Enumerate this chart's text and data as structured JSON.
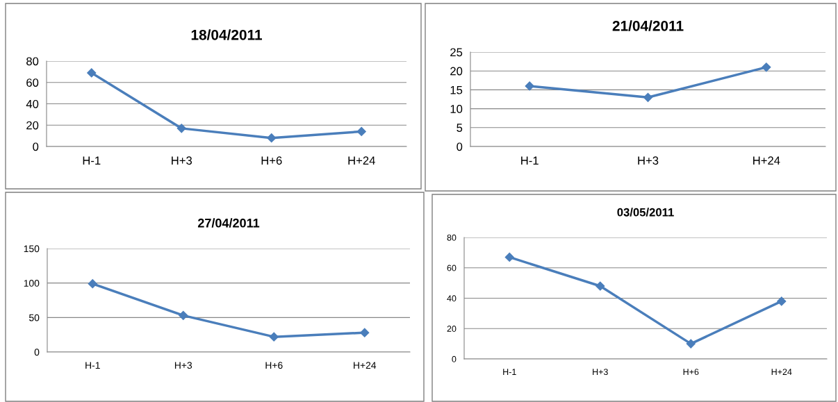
{
  "chart_data": [
    {
      "type": "line",
      "title": "18/04/2011",
      "categories": [
        "H-1",
        "H+3",
        "H+6",
        "H+24"
      ],
      "series": [
        {
          "color": "#4a7ebb",
          "values": [
            69,
            17,
            8,
            14
          ]
        }
      ],
      "ylim": [
        0,
        80
      ],
      "yticks": [
        0,
        20,
        40,
        60,
        80
      ],
      "grid": "y",
      "marker": "diamond",
      "line_style": "solid",
      "legend": false
    },
    {
      "type": "line",
      "title": "21/04/2011",
      "categories": [
        "H-1",
        "H+3",
        "H+24"
      ],
      "series": [
        {
          "color": "#4a7ebb",
          "values": [
            16,
            13,
            21
          ]
        }
      ],
      "ylim": [
        0,
        25
      ],
      "yticks": [
        0,
        5,
        10,
        15,
        20,
        25
      ],
      "grid": "y",
      "marker": "diamond",
      "line_style": "solid",
      "legend": false
    },
    {
      "type": "line",
      "title": "27/04/2011",
      "categories": [
        "H-1",
        "H+3",
        "H+6",
        "H+24"
      ],
      "series": [
        {
          "color": "#4a7ebb",
          "values": [
            99,
            53,
            22,
            28
          ]
        }
      ],
      "ylim": [
        0,
        150
      ],
      "yticks": [
        0,
        50,
        100,
        150
      ],
      "grid": "y",
      "marker": "diamond",
      "line_style": "solid",
      "legend": false
    },
    {
      "type": "line",
      "title": "03/05/2011",
      "categories": [
        "H-1",
        "H+3",
        "H+6",
        "H+24"
      ],
      "series": [
        {
          "color": "#4a7ebb",
          "values": [
            67,
            48,
            10,
            38
          ]
        }
      ],
      "ylim": [
        0,
        80
      ],
      "yticks": [
        0,
        20,
        40,
        60,
        80
      ],
      "grid": "y",
      "marker": "diamond",
      "line_style": "solid",
      "legend": false
    }
  ]
}
